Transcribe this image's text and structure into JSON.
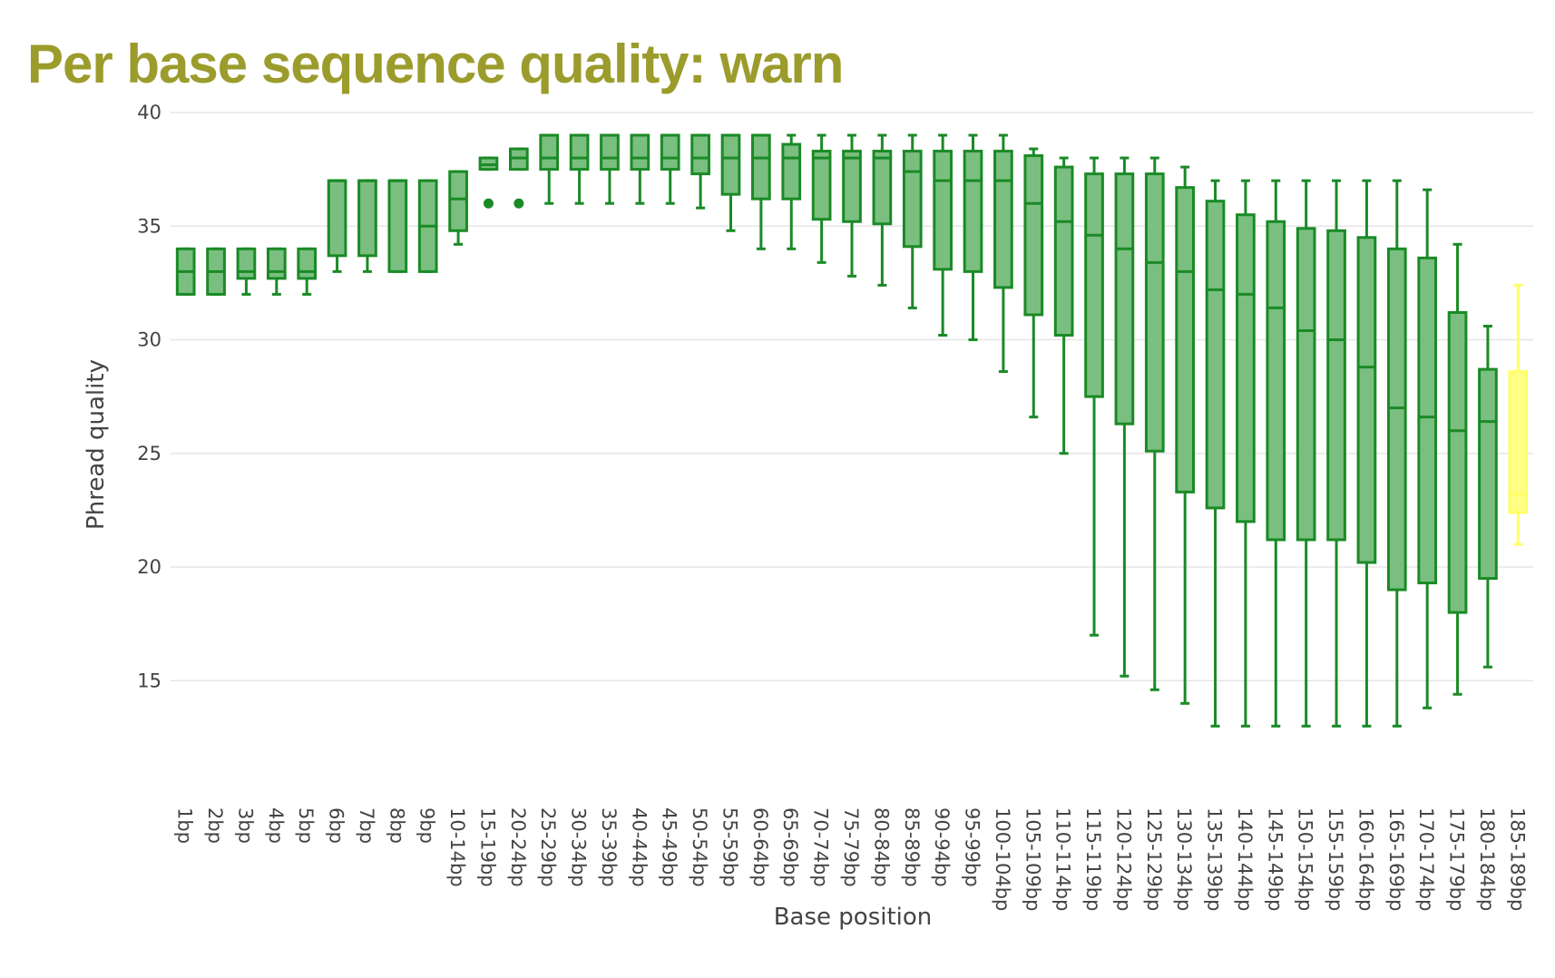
{
  "chart_data": {
    "type": "box",
    "title": "Per base sequence quality: warn",
    "xlabel": "Base position",
    "ylabel": "Phread quality",
    "ylim": [
      10.3,
      40
    ],
    "yticks": [
      15,
      20,
      25,
      30,
      35,
      40
    ],
    "grid": true,
    "legend": "none",
    "colors": {
      "title": "#9b9c2c",
      "box_fill_normal": "#7abf80",
      "box_line_normal": "#1a8a26",
      "box_fill_warn": "#ffff85",
      "box_line_warn": "#ffff66",
      "grid": "#e6e6e6"
    },
    "categories": [
      "1bp",
      "2bp",
      "3bp",
      "4bp",
      "5bp",
      "6bp",
      "7bp",
      "8bp",
      "9bp",
      "10-14bp",
      "15-19bp",
      "20-24bp",
      "25-29bp",
      "30-34bp",
      "35-39bp",
      "40-44bp",
      "45-49bp",
      "50-54bp",
      "55-59bp",
      "60-64bp",
      "65-69bp",
      "70-74bp",
      "75-79bp",
      "80-84bp",
      "85-89bp",
      "90-94bp",
      "95-99bp",
      "100-104bp",
      "105-109bp",
      "110-114bp",
      "115-119bp",
      "120-124bp",
      "125-129bp",
      "130-134bp",
      "135-139bp",
      "140-144bp",
      "145-149bp",
      "150-154bp",
      "155-159bp",
      "160-164bp",
      "165-169bp",
      "170-174bp",
      "175-179bp",
      "180-184bp",
      "185-189bp"
    ],
    "boxes": [
      {
        "lower": 32,
        "q1": 32,
        "median": 33,
        "q3": 34,
        "upper": 34
      },
      {
        "lower": 32,
        "q1": 32,
        "median": 33,
        "q3": 34,
        "upper": 34
      },
      {
        "lower": 32,
        "q1": 32.7,
        "median": 33,
        "q3": 34,
        "upper": 34
      },
      {
        "lower": 32,
        "q1": 32.7,
        "median": 33,
        "q3": 34,
        "upper": 34
      },
      {
        "lower": 32,
        "q1": 32.7,
        "median": 33,
        "q3": 34,
        "upper": 34
      },
      {
        "lower": 33,
        "q1": 33.7,
        "median": 37,
        "q3": 37,
        "upper": 37
      },
      {
        "lower": 33,
        "q1": 33.7,
        "median": 37,
        "q3": 37,
        "upper": 37
      },
      {
        "lower": 33,
        "q1": 33,
        "median": 37,
        "q3": 37,
        "upper": 37
      },
      {
        "lower": 33,
        "q1": 33,
        "median": 35,
        "q3": 37,
        "upper": 37
      },
      {
        "lower": 34.2,
        "q1": 34.8,
        "median": 36.2,
        "q3": 37.4,
        "upper": 37.4
      },
      {
        "lower": 37.5,
        "q1": 37.5,
        "median": 37.7,
        "q3": 38,
        "upper": 38,
        "outliers": [
          36
        ]
      },
      {
        "lower": 37.5,
        "q1": 37.5,
        "median": 38,
        "q3": 38.4,
        "upper": 38.4,
        "outliers": [
          36
        ]
      },
      {
        "lower": 36,
        "q1": 37.5,
        "median": 38,
        "q3": 39,
        "upper": 39
      },
      {
        "lower": 36,
        "q1": 37.5,
        "median": 38,
        "q3": 39,
        "upper": 39
      },
      {
        "lower": 36,
        "q1": 37.5,
        "median": 38,
        "q3": 39,
        "upper": 39
      },
      {
        "lower": 36,
        "q1": 37.5,
        "median": 38,
        "q3": 39,
        "upper": 39
      },
      {
        "lower": 36,
        "q1": 37.5,
        "median": 38,
        "q3": 39,
        "upper": 39
      },
      {
        "lower": 35.8,
        "q1": 37.3,
        "median": 38,
        "q3": 39,
        "upper": 39
      },
      {
        "lower": 34.8,
        "q1": 36.4,
        "median": 38,
        "q3": 39,
        "upper": 39
      },
      {
        "lower": 34,
        "q1": 36.2,
        "median": 38,
        "q3": 39,
        "upper": 39
      },
      {
        "lower": 34,
        "q1": 36.2,
        "median": 38,
        "q3": 38.6,
        "upper": 39
      },
      {
        "lower": 33.4,
        "q1": 35.3,
        "median": 38,
        "q3": 38.3,
        "upper": 39
      },
      {
        "lower": 32.8,
        "q1": 35.2,
        "median": 38,
        "q3": 38.3,
        "upper": 39
      },
      {
        "lower": 32.4,
        "q1": 35.1,
        "median": 38,
        "q3": 38.3,
        "upper": 39
      },
      {
        "lower": 31.4,
        "q1": 34.1,
        "median": 37.4,
        "q3": 38.3,
        "upper": 39
      },
      {
        "lower": 30.2,
        "q1": 33.1,
        "median": 37,
        "q3": 38.3,
        "upper": 39
      },
      {
        "lower": 30,
        "q1": 33,
        "median": 37,
        "q3": 38.3,
        "upper": 39
      },
      {
        "lower": 28.6,
        "q1": 32.3,
        "median": 37,
        "q3": 38.3,
        "upper": 39
      },
      {
        "lower": 26.6,
        "q1": 31.1,
        "median": 36,
        "q3": 38.1,
        "upper": 38.4
      },
      {
        "lower": 25,
        "q1": 30.2,
        "median": 35.2,
        "q3": 37.6,
        "upper": 38
      },
      {
        "lower": 17,
        "q1": 27.5,
        "median": 34.6,
        "q3": 37.3,
        "upper": 38
      },
      {
        "lower": 15.2,
        "q1": 26.3,
        "median": 34,
        "q3": 37.3,
        "upper": 38
      },
      {
        "lower": 14.6,
        "q1": 25.1,
        "median": 33.4,
        "q3": 37.3,
        "upper": 38
      },
      {
        "lower": 14,
        "q1": 23.3,
        "median": 33,
        "q3": 36.7,
        "upper": 37.6
      },
      {
        "lower": 13,
        "q1": 22.6,
        "median": 32.2,
        "q3": 36.1,
        "upper": 37
      },
      {
        "lower": 13,
        "q1": 22,
        "median": 32,
        "q3": 35.5,
        "upper": 37
      },
      {
        "lower": 13,
        "q1": 21.2,
        "median": 31.4,
        "q3": 35.2,
        "upper": 37
      },
      {
        "lower": 13,
        "q1": 21.2,
        "median": 30.4,
        "q3": 34.9,
        "upper": 37
      },
      {
        "lower": 13,
        "q1": 21.2,
        "median": 30,
        "q3": 34.8,
        "upper": 37
      },
      {
        "lower": 13,
        "q1": 20.2,
        "median": 28.8,
        "q3": 34.5,
        "upper": 37
      },
      {
        "lower": 13,
        "q1": 19,
        "median": 27,
        "q3": 34,
        "upper": 37
      },
      {
        "lower": 13.8,
        "q1": 19.3,
        "median": 26.6,
        "q3": 33.6,
        "upper": 36.6
      },
      {
        "lower": 14.4,
        "q1": 18,
        "median": 26,
        "q3": 31.2,
        "upper": 34.2
      },
      {
        "lower": 15.6,
        "q1": 19.5,
        "median": 26.4,
        "q3": 28.7,
        "upper": 30.6
      },
      {
        "lower": 21,
        "q1": 22.4,
        "median": 23.2,
        "q3": 28.6,
        "upper": 32.4,
        "status": "warn"
      }
    ]
  }
}
